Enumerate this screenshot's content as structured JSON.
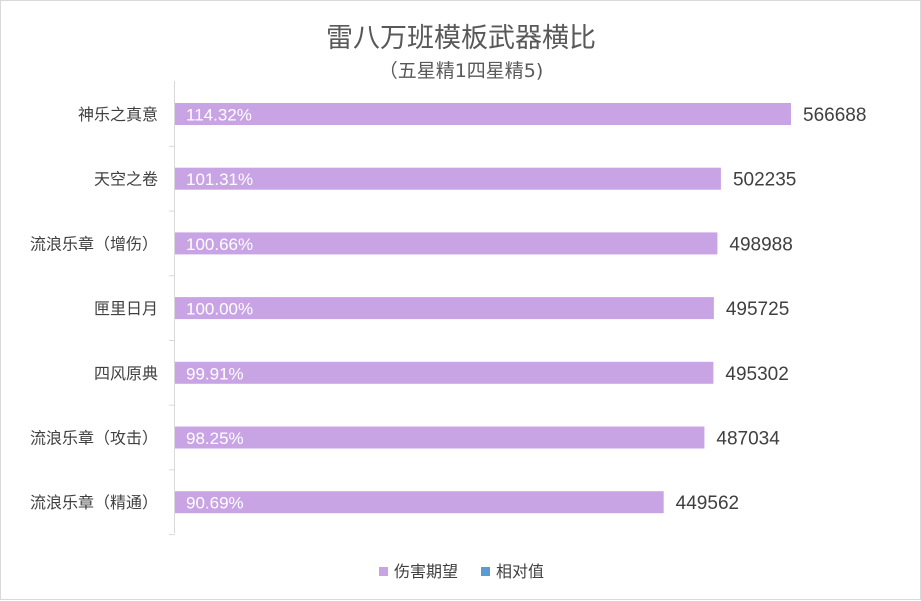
{
  "chart_data": {
    "type": "bar",
    "orientation": "horizontal",
    "title": "雷八万班模板武器横比",
    "subtitle": "（五星精1四星精5)",
    "categories": [
      "神乐之真意",
      "天空之卷",
      "流浪乐章（增伤）",
      "匣里日月",
      "四风原典",
      "流浪乐章（攻击）",
      "流浪乐章（精通）"
    ],
    "series": [
      {
        "name": "伤害期望",
        "color": "#c9a4e4",
        "values": [
          566688,
          502235,
          498988,
          495725,
          495302,
          487034,
          449562
        ]
      },
      {
        "name": "相对值",
        "color": "#5b9bd5",
        "values": [
          "114.32%",
          "101.31%",
          "100.66%",
          "100.00%",
          "99.91%",
          "98.25%",
          "90.69%"
        ]
      }
    ],
    "xlim": [
      0,
      566688
    ],
    "grid": false,
    "legend_position": "bottom"
  }
}
